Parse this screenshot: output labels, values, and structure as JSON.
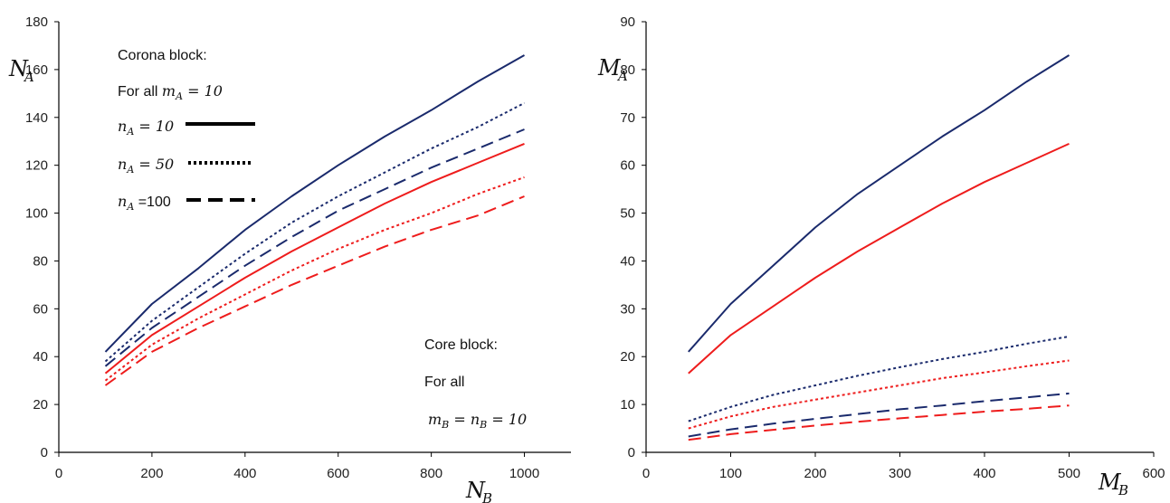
{
  "colors": {
    "dark": "#1a2a6c",
    "red": "#ee1c1c",
    "axis": "#000000"
  },
  "chart_data": [
    {
      "type": "line",
      "xlabel": {
        "main": "N",
        "sub": "B"
      },
      "ylabel": {
        "main": "N",
        "sub": "A"
      },
      "xlim": [
        0,
        1100
      ],
      "ylim": [
        0,
        180
      ],
      "xticks": [
        0,
        200,
        400,
        600,
        800,
        1000
      ],
      "yticks": [
        0,
        20,
        40,
        60,
        80,
        100,
        120,
        140,
        160,
        180
      ],
      "x": [
        100,
        200,
        300,
        400,
        500,
        600,
        700,
        800,
        900,
        1000
      ],
      "series": [
        {
          "color": "dark",
          "dash": "solid",
          "values": [
            42,
            62,
            77,
            93,
            107,
            120,
            132,
            143,
            155,
            166
          ]
        },
        {
          "color": "dark",
          "dash": "dotted",
          "values": [
            38,
            55,
            69,
            83,
            96,
            107,
            117,
            127,
            136,
            146
          ]
        },
        {
          "color": "dark",
          "dash": "dashed",
          "values": [
            36,
            52,
            65,
            78,
            90,
            101,
            110,
            119,
            127,
            135
          ]
        },
        {
          "color": "red",
          "dash": "solid",
          "values": [
            33,
            49,
            61,
            73,
            84,
            94,
            104,
            113,
            121,
            129
          ]
        },
        {
          "color": "red",
          "dash": "dotted",
          "values": [
            30,
            45,
            56,
            66,
            76,
            85,
            93,
            100,
            108,
            115
          ]
        },
        {
          "color": "red",
          "dash": "dashed",
          "values": [
            28,
            42,
            52,
            61,
            70,
            78,
            86,
            93,
            99,
            107
          ]
        }
      ],
      "annotations": {
        "corona_title": "Corona block:",
        "corona_line1": {
          "prefix": "For all ",
          "var": "m",
          "sub": "A",
          "rest": " = 10"
        },
        "legend": [
          {
            "var": "n",
            "sub": "A",
            "rest": " = 10",
            "dash": "solid"
          },
          {
            "var": "n",
            "sub": "A",
            "rest": " = 50",
            "dash": "dotted"
          },
          {
            "var": "n",
            "sub": "A",
            "rest": " =100",
            "dash": "dashed"
          }
        ],
        "core_title": "Core block:",
        "core_line1": "For all",
        "core_line2": {
          "var1": "m",
          "sub1": "B",
          "mid": " = ",
          "var2": "n",
          "sub2": "B",
          "rest": " = 10"
        }
      }
    },
    {
      "type": "line",
      "xlabel": {
        "main": "M",
        "sub": "B"
      },
      "ylabel": {
        "main": "M",
        "sub": "A"
      },
      "xlim": [
        0,
        600
      ],
      "ylim": [
        0,
        90
      ],
      "xticks": [
        0,
        100,
        200,
        300,
        400,
        500,
        600
      ],
      "yticks": [
        0,
        10,
        20,
        30,
        40,
        50,
        60,
        70,
        80,
        90
      ],
      "x": [
        50,
        100,
        150,
        200,
        250,
        300,
        350,
        400,
        450,
        500
      ],
      "series": [
        {
          "color": "dark",
          "dash": "solid",
          "values": [
            21,
            31,
            39,
            47,
            54,
            60,
            66,
            71.5,
            77.5,
            83
          ]
        },
        {
          "color": "red",
          "dash": "solid",
          "values": [
            16.5,
            24.5,
            30.5,
            36.5,
            42,
            47,
            52,
            56.5,
            60.5,
            64.5
          ]
        },
        {
          "color": "dark",
          "dash": "dotted",
          "values": [
            6.5,
            9.5,
            12,
            14,
            16,
            17.8,
            19.5,
            21,
            22.7,
            24.2
          ]
        },
        {
          "color": "red",
          "dash": "dotted",
          "values": [
            5,
            7.5,
            9.5,
            11,
            12.5,
            14,
            15.5,
            16.7,
            18,
            19.2
          ]
        },
        {
          "color": "dark",
          "dash": "dashed",
          "values": [
            3.3,
            4.8,
            6,
            7,
            8,
            9,
            9.8,
            10.7,
            11.5,
            12.3
          ]
        },
        {
          "color": "red",
          "dash": "dashed",
          "values": [
            2.6,
            3.8,
            4.7,
            5.6,
            6.4,
            7.1,
            7.8,
            8.5,
            9.1,
            9.8
          ]
        }
      ]
    }
  ]
}
